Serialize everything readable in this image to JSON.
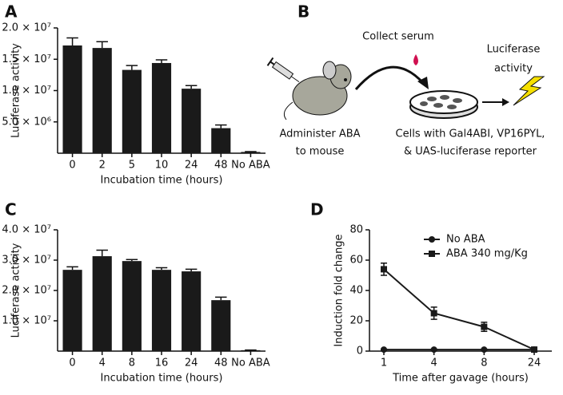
{
  "chart_data": [
    {
      "type": "bar",
      "panel": "A",
      "xlabel": "Incubation time (hours)",
      "ylabel": "Luciferase activity",
      "categories": [
        "0",
        "2",
        "5",
        "10",
        "24",
        "48",
        "No ABA"
      ],
      "values": [
        17200000,
        16800000,
        13300000,
        14400000,
        10300000,
        4000000,
        200000
      ],
      "errors": [
        1200000,
        1000000,
        700000,
        500000,
        500000,
        500000,
        50000
      ],
      "color": "#1a1a1a",
      "ylim": [
        0,
        20000000
      ],
      "yticks": [
        {
          "value": 5000000,
          "label": "5.0 × 10⁶"
        },
        {
          "value": 10000000,
          "label": "1.0 × 10⁷"
        },
        {
          "value": 15000000,
          "label": "1.5 × 10⁷"
        },
        {
          "value": 20000000,
          "label": "2.0 × 10⁷"
        }
      ]
    },
    {
      "type": "bar",
      "panel": "C",
      "xlabel": "Incubation time (hours)",
      "ylabel": "Luciferase activity",
      "categories": [
        "0",
        "4",
        "8",
        "16",
        "24",
        "48",
        "No ABA"
      ],
      "values": [
        26800000,
        31300000,
        29700000,
        26800000,
        26300000,
        16800000,
        300000
      ],
      "errors": [
        1000000,
        2000000,
        500000,
        700000,
        700000,
        1000000,
        50000
      ],
      "color": "#1a1a1a",
      "ylim": [
        0,
        40000000
      ],
      "yticks": [
        {
          "value": 10000000,
          "label": "1.0 × 10⁷"
        },
        {
          "value": 20000000,
          "label": "2.0 × 10⁷"
        },
        {
          "value": 30000000,
          "label": "3.0 × 10⁷"
        },
        {
          "value": 40000000,
          "label": "4.0 × 10⁷"
        }
      ]
    },
    {
      "type": "line",
      "panel": "D",
      "xlabel": "Time after gavage (hours)",
      "ylabel": "Induction fold change",
      "categories": [
        "1",
        "4",
        "8",
        "24"
      ],
      "series": [
        {
          "name": "No ABA",
          "color": "#1a1a1a",
          "marker": "circle",
          "values": [
            1,
            1,
            1,
            1
          ],
          "errors": [
            0.3,
            0.3,
            0.3,
            0.3
          ]
        },
        {
          "name": "ABA 340 mg/Kg",
          "color": "#1a1a1a",
          "marker": "square",
          "values": [
            54,
            25,
            16,
            1
          ],
          "errors": [
            4,
            4,
            3,
            0.5
          ]
        }
      ],
      "ylim": [
        0,
        80
      ],
      "yticks": [
        0,
        20,
        40,
        60,
        80
      ],
      "legend": "upper right"
    }
  ],
  "diagram": {
    "panel": "B",
    "collect": "Collect serum",
    "readout": [
      "Luciferase",
      "activity"
    ],
    "administer": [
      "Administer ABA",
      "to mouse"
    ],
    "cells": [
      "Cells with Gal4ABI, VP16PYL,",
      "& UAS-luciferase reporter"
    ]
  }
}
